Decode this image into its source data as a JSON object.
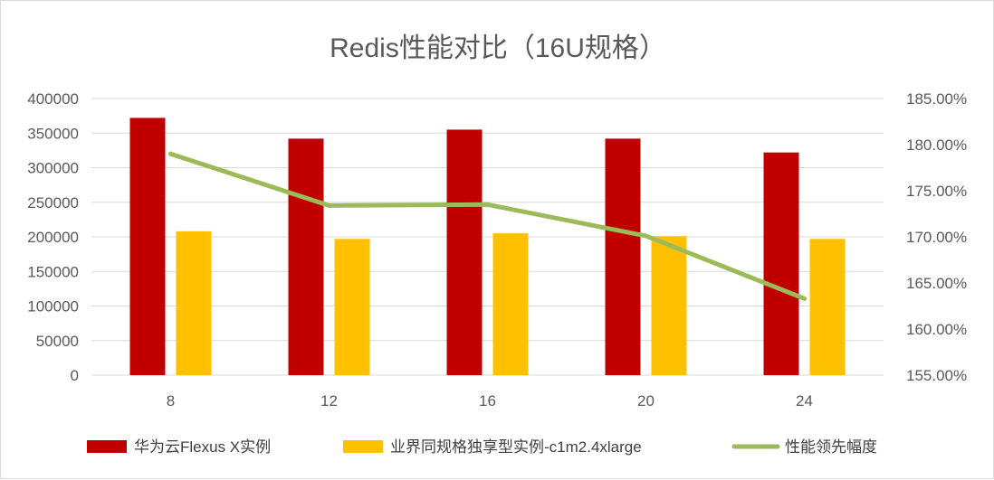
{
  "chart_data": {
    "type": "bar",
    "title": "Redis性能对比（16U规格）",
    "categories": [
      "8",
      "12",
      "16",
      "20",
      "24"
    ],
    "y_left": {
      "min": 0,
      "max": 400000,
      "step": 50000,
      "ticks": [
        "0",
        "50000",
        "100000",
        "150000",
        "200000",
        "250000",
        "300000",
        "350000",
        "400000"
      ]
    },
    "y_right": {
      "min": 155,
      "max": 185,
      "step": 5,
      "ticks": [
        "155.00%",
        "160.00%",
        "165.00%",
        "170.00%",
        "175.00%",
        "180.00%",
        "185.00%"
      ]
    },
    "series": [
      {
        "name": "华为云Flexus X实例",
        "type": "bar",
        "axis": "left",
        "color": "#c00000",
        "values": [
          372000,
          342000,
          355000,
          342000,
          322000
        ]
      },
      {
        "name": "业界同规格独享型实例-c1m2.4xlarge",
        "type": "bar",
        "axis": "left",
        "color": "#ffc000",
        "values": [
          208000,
          197000,
          205000,
          201000,
          197000
        ]
      },
      {
        "name": "性能领先幅度",
        "type": "line",
        "axis": "right",
        "color": "#9bbb59",
        "values": [
          179.0,
          173.4,
          173.5,
          170.1,
          163.3
        ]
      }
    ],
    "grid": true,
    "legend_position": "bottom"
  }
}
